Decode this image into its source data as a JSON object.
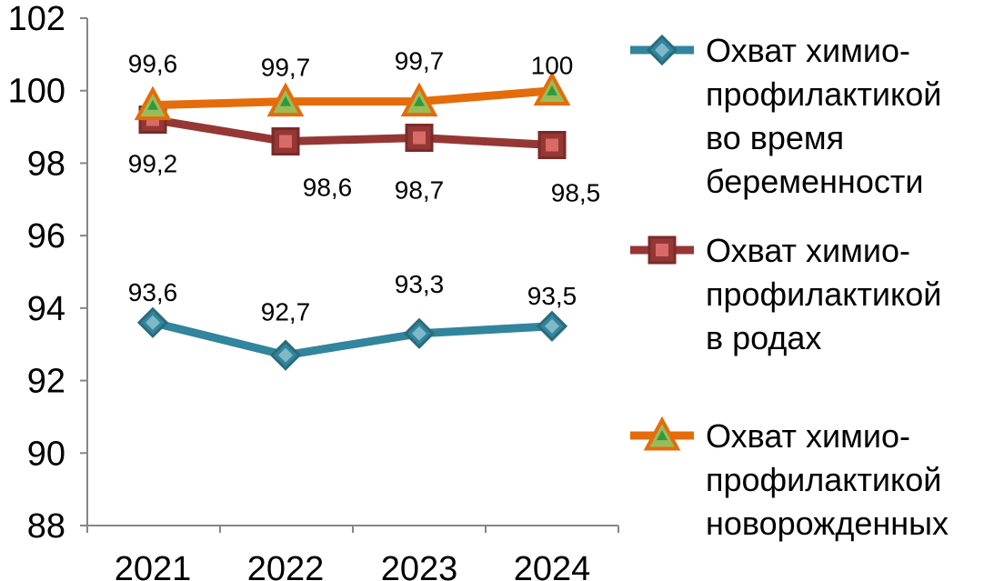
{
  "chart_data": {
    "type": "line",
    "title": "",
    "xlabel": "",
    "ylabel": "",
    "categories": [
      "2021",
      "2022",
      "2023",
      "2024"
    ],
    "ylim": [
      88,
      102
    ],
    "yticks": [
      88,
      90,
      92,
      94,
      96,
      98,
      100,
      102
    ],
    "grid": false,
    "legend_position": "right",
    "series": [
      {
        "name": "Охват химио-профилактикой во время беременности",
        "legend_lines": [
          "Охват химио-",
          "профилактикой",
          "во время",
          "беременности"
        ],
        "values": [
          93.6,
          92.7,
          93.3,
          93.5
        ],
        "labels": [
          "93,6",
          "92,7",
          "93,3",
          "93,5"
        ],
        "color": "#31859C",
        "marker": "diamond"
      },
      {
        "name": "Охват химио-профилактикой в родах",
        "legend_lines": [
          "Охват химио-",
          "профилактикой",
          "в родах"
        ],
        "values": [
          99.2,
          98.6,
          98.7,
          98.5
        ],
        "labels": [
          "99,2",
          "98,6",
          "98,7",
          "98,5"
        ],
        "color": "#953735",
        "marker": "square"
      },
      {
        "name": "Охват химио-профилактикой новорожденных",
        "legend_lines": [
          "Охват химио-",
          "профилактикой",
          "новорожденных"
        ],
        "values": [
          99.6,
          99.7,
          99.7,
          100
        ],
        "labels": [
          "99,6",
          "99,7",
          "99,7",
          "100"
        ],
        "color": "#E46C0A",
        "marker": "triangle"
      }
    ]
  }
}
